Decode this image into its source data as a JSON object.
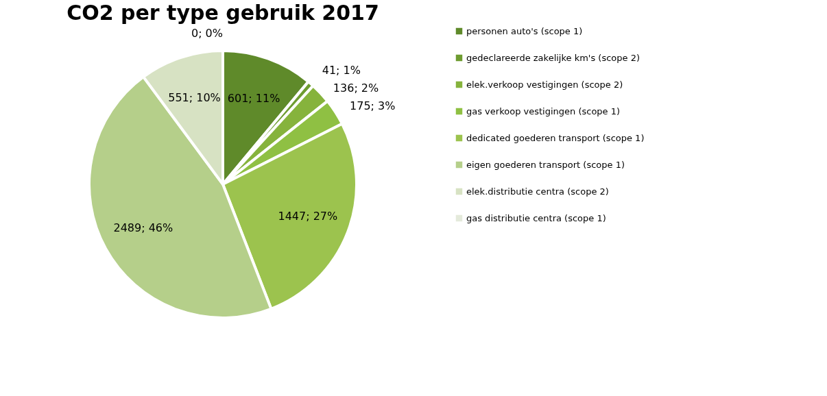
{
  "chart_data": {
    "type": "pie",
    "title": "CO2 per type gebruik 2017",
    "categories": [
      "personen auto's (scope 1)",
      "gedeclareerde zakelijke km's (scope 2)",
      "elek.verkoop vestigingen (scope 2)",
      "gas verkoop vestigingen (scope 1)",
      "dedicated goederen transport (scope 1)",
      "eigen goederen transport (scope 1)",
      "elek.distributie centra (scope 2)",
      "gas distributie centra (scope 1)"
    ],
    "values": [
      601,
      41,
      136,
      175,
      1447,
      2489,
      551,
      0
    ],
    "value_labels": [
      "601; 11%",
      "41; 1%",
      "136; 2%",
      "175; 3%",
      "1447; 27%",
      "2489; 46%",
      "551; 10%",
      "0; 0%"
    ],
    "colors": [
      "#5f8a2a",
      "#6e9c30",
      "#86b33c",
      "#8fc043",
      "#9cc34e",
      "#b5cf8a",
      "#d7e2c3",
      "#e4eadb"
    ],
    "legend": "right"
  }
}
